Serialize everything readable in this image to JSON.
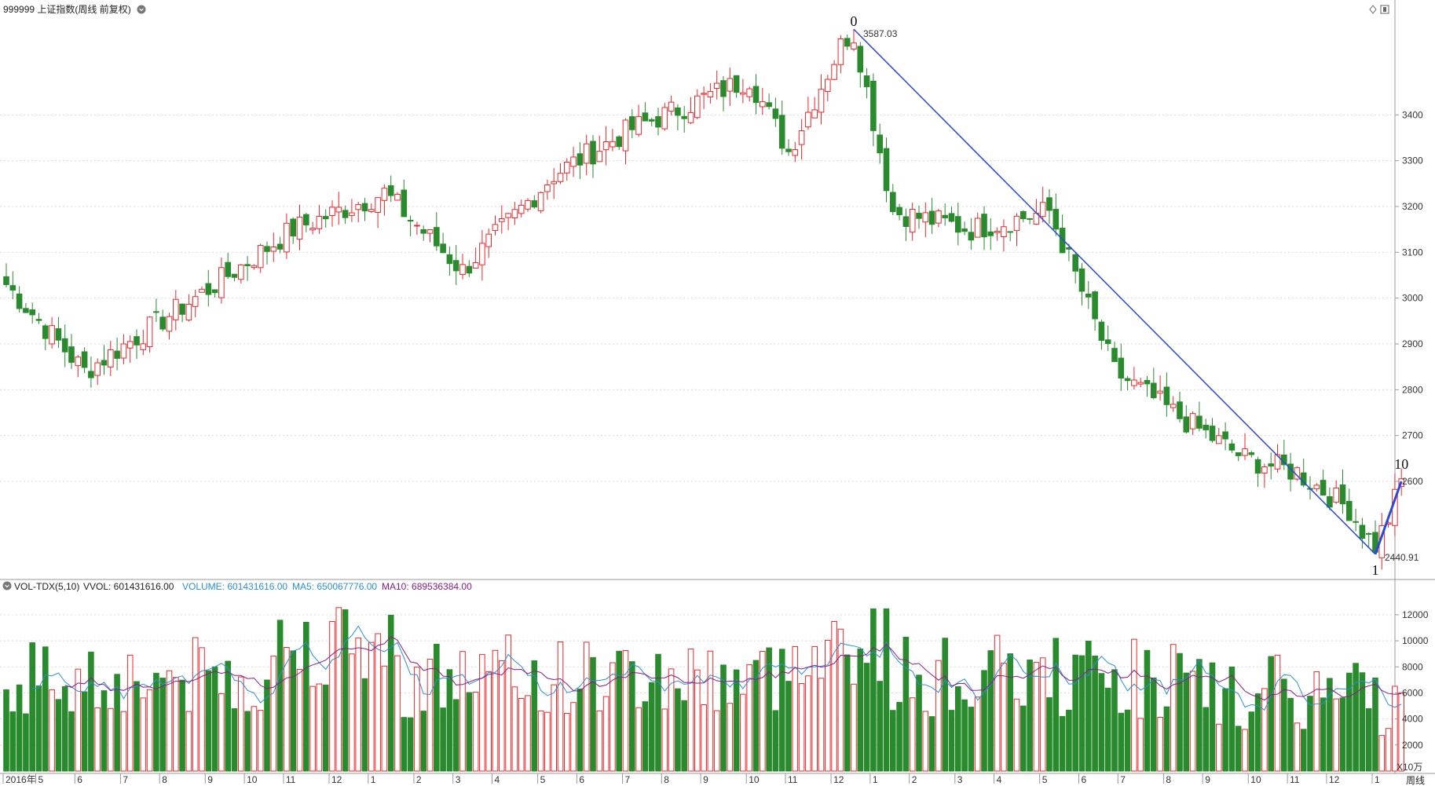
{
  "window": {
    "title": "999999 上证指数(周线 前复权)",
    "period_tab": "周线"
  },
  "price_panel": {
    "y_ticks": [
      "3400",
      "3300",
      "3200",
      "3100",
      "3000",
      "2900",
      "2800",
      "2700",
      "2600"
    ],
    "high_label": "3587.03",
    "low_label": "2440.91",
    "wave_labels": [
      "0",
      "1",
      "10"
    ]
  },
  "volume_panel": {
    "indicator": "VOL-TDX(5,10)",
    "vvol": "VVOL: 601431616.00",
    "volume": "VOLUME: 601431616.00",
    "ma5": "MA5: 650067776.00",
    "ma10": "MA10: 689536384.00",
    "y_ticks": [
      "12000",
      "10000",
      "8000",
      "6000",
      "4000",
      "2000"
    ],
    "unit": "X10万"
  },
  "x_axis": {
    "labels": [
      "2016年",
      "5",
      "6",
      "7",
      "8",
      "9",
      "10",
      "11",
      "12",
      "1",
      "2",
      "3",
      "4",
      "5",
      "6",
      "7",
      "8",
      "9",
      "10",
      "11",
      "12",
      "1",
      "2",
      "3",
      "4",
      "5",
      "6",
      "7",
      "8",
      "9",
      "10",
      "11",
      "12",
      "1"
    ]
  },
  "colors": {
    "up": "#e8282b",
    "down": "#2a8a2e",
    "ma5": "#2a8fd8",
    "ma10": "#8a1a8a",
    "trend": "#2b48d6"
  },
  "chart_data": {
    "type": "candlestick",
    "title": "999999 上证指数(周线 前复权)",
    "price_ylim": [
      2420,
      3620
    ],
    "volume_ylim": [
      0,
      13500
    ],
    "x_range": [
      "2016-04",
      "2019-01"
    ],
    "candles_anchor_closes": [
      [
        0,
        3030
      ],
      [
        12,
        2840
      ],
      [
        30,
        3010
      ],
      [
        44,
        3150
      ],
      [
        58,
        3230
      ],
      [
        70,
        3060
      ],
      [
        84,
        3270
      ],
      [
        96,
        3370
      ],
      [
        106,
        3430
      ],
      [
        114,
        3480
      ],
      [
        120,
        3320
      ],
      [
        128,
        3550
      ],
      [
        130,
        3587.03
      ],
      [
        136,
        3190
      ],
      [
        148,
        3150
      ],
      [
        160,
        3190
      ],
      [
        170,
        2840
      ],
      [
        180,
        2740
      ],
      [
        190,
        2650
      ],
      [
        198,
        2620
      ],
      [
        206,
        2540
      ],
      [
        208,
        2493
      ],
      [
        210,
        2460
      ],
      [
        212,
        2520
      ],
      [
        214,
        2600
      ]
    ],
    "annotations": [
      {
        "label": "0",
        "value": 3587.03
      },
      {
        "label": "1",
        "value": 2440.91
      },
      {
        "label": "10",
        "value": 2600
      }
    ],
    "trend_lines": [
      {
        "from": [
          130,
          3587.03
        ],
        "to": [
          210,
          2440.91
        ]
      },
      {
        "from": [
          210,
          2440.91
        ],
        "to": [
          214,
          2600
        ]
      }
    ],
    "last_volume": 6014,
    "last_ma5": 6501,
    "last_ma10": 6895
  }
}
